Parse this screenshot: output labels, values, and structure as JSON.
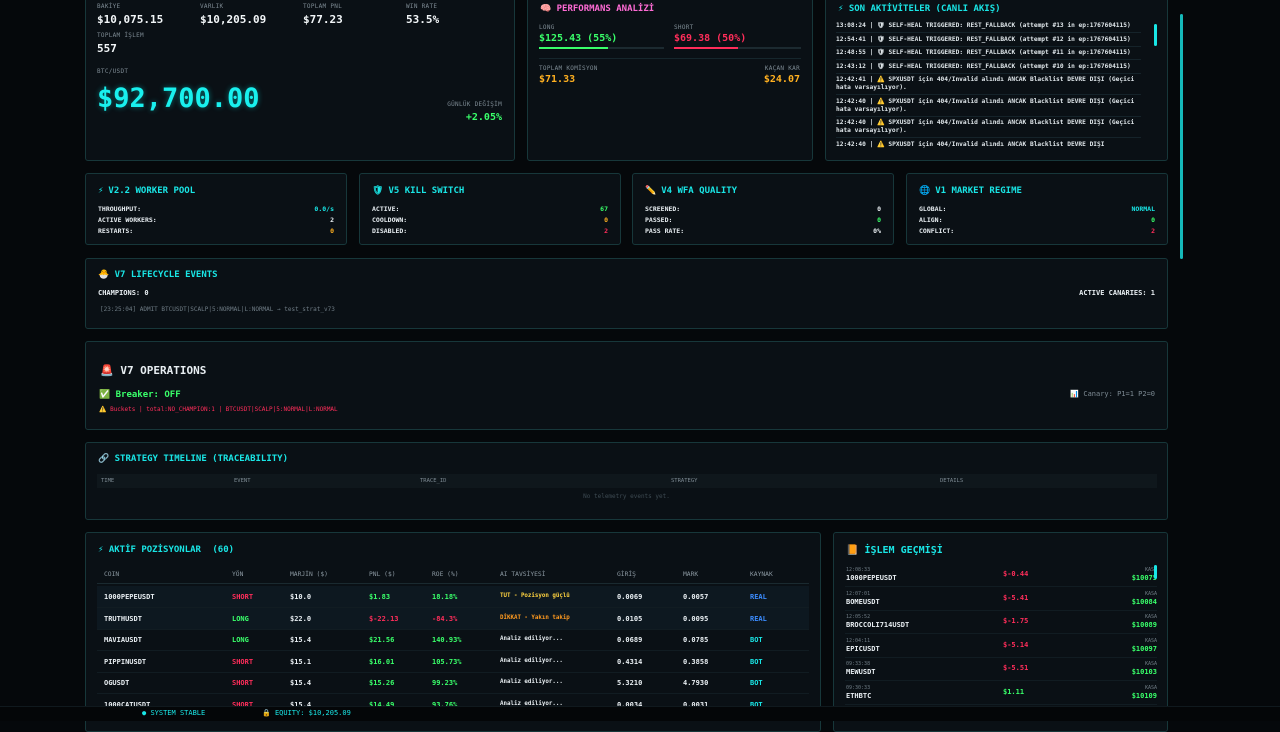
{
  "top_stats": [
    {
      "label": "BAKİYE",
      "value": "$10,075.15"
    },
    {
      "label": "VARLIK",
      "value": "$10,205.09"
    },
    {
      "label": "TOPLAM PNL",
      "value": "$77.23"
    },
    {
      "label": "WIN RATE",
      "value": "53.5%"
    },
    {
      "label": "TOPLAM İŞLEM",
      "value": "557"
    }
  ],
  "price": {
    "label": "BTC/USDT",
    "value": "$92,700.00",
    "change_label": "GÜNLÜK DEĞİŞİM",
    "change": "+2.05%"
  },
  "performance": {
    "title": "PERFORMANS ANALİZİ",
    "long_label": "LONG",
    "long_value": "$125.43 (55%)",
    "short_label": "SHORT",
    "short_value": "$69.38 (50%)",
    "commission_label": "TOPLAM KOMİSYON",
    "commission_value": "$71.33",
    "missed_label": "KAÇAN KAR",
    "missed_value": "$24.07"
  },
  "activity": {
    "title": "SON AKTİVİTELER (CANLI AKIŞ)",
    "entries": [
      "13:08:24 | 🛡 SELF-HEAL TRIGGERED: REST_FALLBACK (attempt #13 in ep:1767604115)",
      "12:54:41 | 🛡 SELF-HEAL TRIGGERED: REST_FALLBACK (attempt #12 in ep:1767604115)",
      "12:48:55 | 🛡 SELF-HEAL TRIGGERED: REST_FALLBACK (attempt #11 in ep:1767604115)",
      "12:43:12 | 🛡 SELF-HEAL TRIGGERED: REST_FALLBACK (attempt #10 in ep:1767604115)",
      "12:42:41 | ⚠️ SPXUSDT için 404/Invalid alındı ANCAK Blacklist DEVRE DIŞI (Geçici hata varsayılıyor).",
      "12:42:40 | ⚠️ SPXUSDT için 404/Invalid alındı ANCAK Blacklist DEVRE DIŞI (Geçici hata varsayılıyor).",
      "12:42:40 | ⚠️ SPXUSDT için 404/Invalid alındı ANCAK Blacklist DEVRE DIŞI (Geçici hata varsayılıyor).",
      "12:42:40 | ⚠️ SPXUSDT için 404/Invalid alındı ANCAK Blacklist DEVRE DIŞI"
    ]
  },
  "cards": [
    {
      "icon": "⚡",
      "title": "V2.2 WORKER POOL",
      "rows": [
        {
          "label": "THROUGHPUT:",
          "value": "0.0/s",
          "color": "#19e6e6"
        },
        {
          "label": "ACTIVE WORKERS:",
          "value": "2",
          "color": "#e8eef2"
        },
        {
          "label": "RESTARTS:",
          "value": "0",
          "color": "#ffb020"
        }
      ]
    },
    {
      "icon": "🛡",
      "title": "V5 KILL SWITCH",
      "rows": [
        {
          "label": "ACTIVE:",
          "value": "67",
          "color": "#39ff6a"
        },
        {
          "label": "COOLDOWN:",
          "value": "0",
          "color": "#ffb020"
        },
        {
          "label": "DISABLED:",
          "value": "2",
          "color": "#ff2d5a"
        }
      ]
    },
    {
      "icon": "✏️",
      "title": "V4 WFA QUALITY",
      "rows": [
        {
          "label": "SCREENED:",
          "value": "0",
          "color": "#e8eef2"
        },
        {
          "label": "PASSED:",
          "value": "0",
          "color": "#39ff6a"
        },
        {
          "label": "PASS RATE:",
          "value": "0%",
          "color": "#e8eef2"
        }
      ]
    },
    {
      "icon": "🌐",
      "title": "V1 MARKET REGIME",
      "rows": [
        {
          "label": "GLOBAL:",
          "value": "NORMAL",
          "color": "#19e6e6"
        },
        {
          "label": "ALIGN:",
          "value": "0",
          "color": "#39ff6a"
        },
        {
          "label": "CONFLICT:",
          "value": "2",
          "color": "#ff2d5a"
        }
      ]
    }
  ],
  "lifecycle": {
    "title": "🐣 V7 LIFECYCLE EVENTS",
    "champions": "CHAMPIONS: 0",
    "canaries": "ACTIVE CANARIES: 1",
    "log": "[23:25:04] ADMIT BTCUSDT|SCALP|5:NORMAL|L:NORMAL → test_strat_v73"
  },
  "operations": {
    "title": "🚨 V7 OPERATIONS",
    "breaker": "✅ Breaker: OFF",
    "buckets": "⚠️ Buckets | total:NO_CHAMPION:1 | BTCUSDT|SCALP|5:NORMAL|L:NORMAL",
    "canary": "📊 Canary: P1=1 P2=0"
  },
  "timeline": {
    "title": "🔗 STRATEGY TIMELINE (TRACEABILITY)",
    "columns": [
      "TIME",
      "EVENT",
      "TRACE_ID",
      "STRATEGY",
      "DETAILS"
    ],
    "empty": "No telemetry events yet."
  },
  "positions": {
    "title": "⚡ AKTİF POZİSYONLAR",
    "count": "(60)",
    "columns": [
      "COIN",
      "YÖN",
      "MARJİN ($)",
      "PNL ($)",
      "ROE (%)",
      "AI TAVSİYESİ",
      "GİRİŞ",
      "MARK",
      "KAYNAK"
    ],
    "rows": [
      {
        "coin": "1000PEPEUSDT",
        "side": "SHORT",
        "margin": "$10.0",
        "pnl": "$1.83",
        "roe": "18.18%",
        "advice": "TUT - Pozisyon güçlü",
        "entry": "0.0069",
        "mark": "0.0057",
        "source": "REAL",
        "side_color": "#ff2d5a",
        "pnl_color": "#39ff6a",
        "advice_color": "#ffd23f",
        "source_color": "#3b8cff"
      },
      {
        "coin": "TRUTHUSDT",
        "side": "LONG",
        "margin": "$22.0",
        "pnl": "$-22.13",
        "roe": "-84.3%",
        "advice": "DİKKAT - Yakın takip",
        "entry": "0.0105",
        "mark": "0.0095",
        "source": "REAL",
        "side_color": "#39ff6a",
        "pnl_color": "#ff2d5a",
        "advice_color": "#ff9a1f",
        "source_color": "#3b8cff"
      },
      {
        "coin": "MAVIAUSDT",
        "side": "LONG",
        "margin": "$15.4",
        "pnl": "$21.56",
        "roe": "140.93%",
        "advice": "Analiz ediliyor...",
        "entry": "0.0689",
        "mark": "0.0785",
        "source": "BOT",
        "side_color": "#39ff6a",
        "pnl_color": "#39ff6a",
        "advice_color": "#e8eef2",
        "source_color": "#19e6e6"
      },
      {
        "coin": "PIPPINUSDT",
        "side": "SHORT",
        "margin": "$15.1",
        "pnl": "$16.01",
        "roe": "105.73%",
        "advice": "Analiz ediliyor...",
        "entry": "0.4314",
        "mark": "0.3858",
        "source": "BOT",
        "side_color": "#ff2d5a",
        "pnl_color": "#39ff6a",
        "advice_color": "#e8eef2",
        "source_color": "#19e6e6"
      },
      {
        "coin": "OGUSDT",
        "side": "SHORT",
        "margin": "$15.4",
        "pnl": "$15.26",
        "roe": "99.23%",
        "advice": "Analiz ediliyor...",
        "entry": "5.3210",
        "mark": "4.7930",
        "source": "BOT",
        "side_color": "#ff2d5a",
        "pnl_color": "#39ff6a",
        "advice_color": "#e8eef2",
        "source_color": "#19e6e6"
      },
      {
        "coin": "1000CATUSDT",
        "side": "SHORT",
        "margin": "$15.4",
        "pnl": "$14.49",
        "roe": "93.76%",
        "advice": "Analiz ediliyor...",
        "entry": "0.0034",
        "mark": "0.0031",
        "source": "BOT",
        "side_color": "#ff2d5a",
        "pnl_color": "#39ff6a",
        "advice_color": "#e8eef2",
        "source_color": "#19e6e6"
      }
    ]
  },
  "history": {
    "title": "📙 İŞLEM GEÇMİŞİ",
    "rows": [
      {
        "time": "12:08:33",
        "symbol": "1000PEPEUSDT",
        "pnl": "$-0.44",
        "pnl_color": "#ff2d5a",
        "balance_label": "KASA",
        "balance": "$10075"
      },
      {
        "time": "12:07:01",
        "symbol": "BOMEUSDT",
        "pnl": "$-5.41",
        "pnl_color": "#ff2d5a",
        "balance_label": "KASA",
        "balance": "$10084"
      },
      {
        "time": "12:05:52",
        "symbol": "BROCCOLI714USDT",
        "pnl": "$-1.75",
        "pnl_color": "#ff2d5a",
        "balance_label": "KASA",
        "balance": "$10089"
      },
      {
        "time": "12:04:11",
        "symbol": "EPICUSDT",
        "pnl": "$-5.14",
        "pnl_color": "#ff2d5a",
        "balance_label": "KASA",
        "balance": "$10097"
      },
      {
        "time": "09:33:38",
        "symbol": "MEWUSDT",
        "pnl": "$-5.51",
        "pnl_color": "#ff2d5a",
        "balance_label": "KASA",
        "balance": "$10103"
      },
      {
        "time": "09:30:33",
        "symbol": "ETHBTC",
        "pnl": "$1.11",
        "pnl_color": "#39ff6a",
        "balance_label": "KASA",
        "balance": "$10109"
      }
    ]
  },
  "footer": {
    "status": "SYSTEM STABLE",
    "equity": "EQUITY: $10,205.09"
  }
}
